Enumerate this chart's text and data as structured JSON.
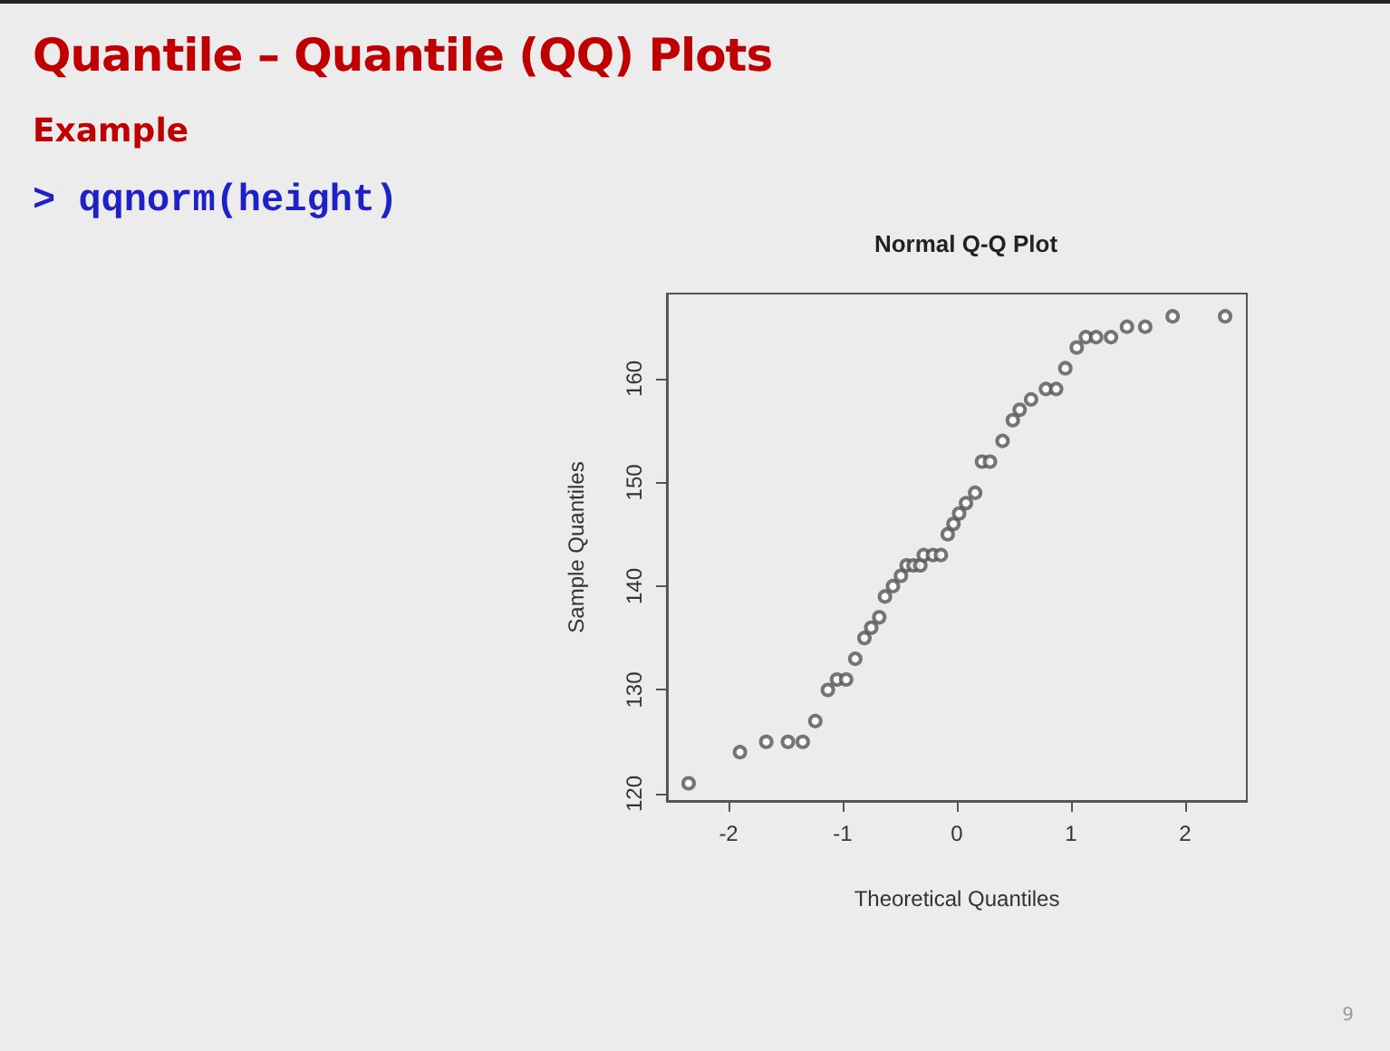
{
  "chart_data": {
    "type": "scatter",
    "title": "Normal Q-Q Plot",
    "xlabel": "Theoretical Quantiles",
    "ylabel": "Sample Quantiles",
    "annotations": [
      "Quantile – Quantile (QQ) Plots",
      "Example",
      "> qqnorm(height)",
      "9"
    ],
    "x": [
      -2.35,
      -1.9,
      -1.67,
      -1.48,
      -1.35,
      -1.24,
      -1.13,
      -1.05,
      -0.97,
      -0.89,
      -0.81,
      -0.75,
      -0.68,
      -0.63,
      -0.56,
      -0.49,
      -0.44,
      -0.38,
      -0.32,
      -0.29,
      -0.21,
      -0.14,
      -0.08,
      -0.03,
      0.02,
      0.08,
      0.16,
      0.22,
      0.29,
      0.4,
      0.49,
      0.55,
      0.65,
      0.78,
      0.87,
      0.95,
      1.05,
      1.13,
      1.22,
      1.35,
      1.49,
      1.65,
      1.89,
      2.35
    ],
    "values": [
      121,
      124,
      125,
      125,
      125,
      127,
      130,
      131,
      131,
      133,
      135,
      136,
      137,
      139,
      140,
      141,
      142,
      142,
      142,
      143,
      143,
      143,
      145,
      146,
      147,
      148,
      149,
      152,
      152,
      154,
      156,
      157,
      158,
      159,
      159,
      161,
      163,
      164,
      164,
      164,
      165,
      165,
      166,
      166
    ],
    "color": "#555555",
    "marker": "circle",
    "grid": false,
    "xlim": [
      -2.54,
      2.54
    ],
    "ylim": [
      119.3,
      168.2
    ],
    "xticks": [
      -2,
      -1,
      0,
      1,
      2
    ],
    "yticks": [
      120,
      130,
      140,
      150,
      160
    ]
  }
}
